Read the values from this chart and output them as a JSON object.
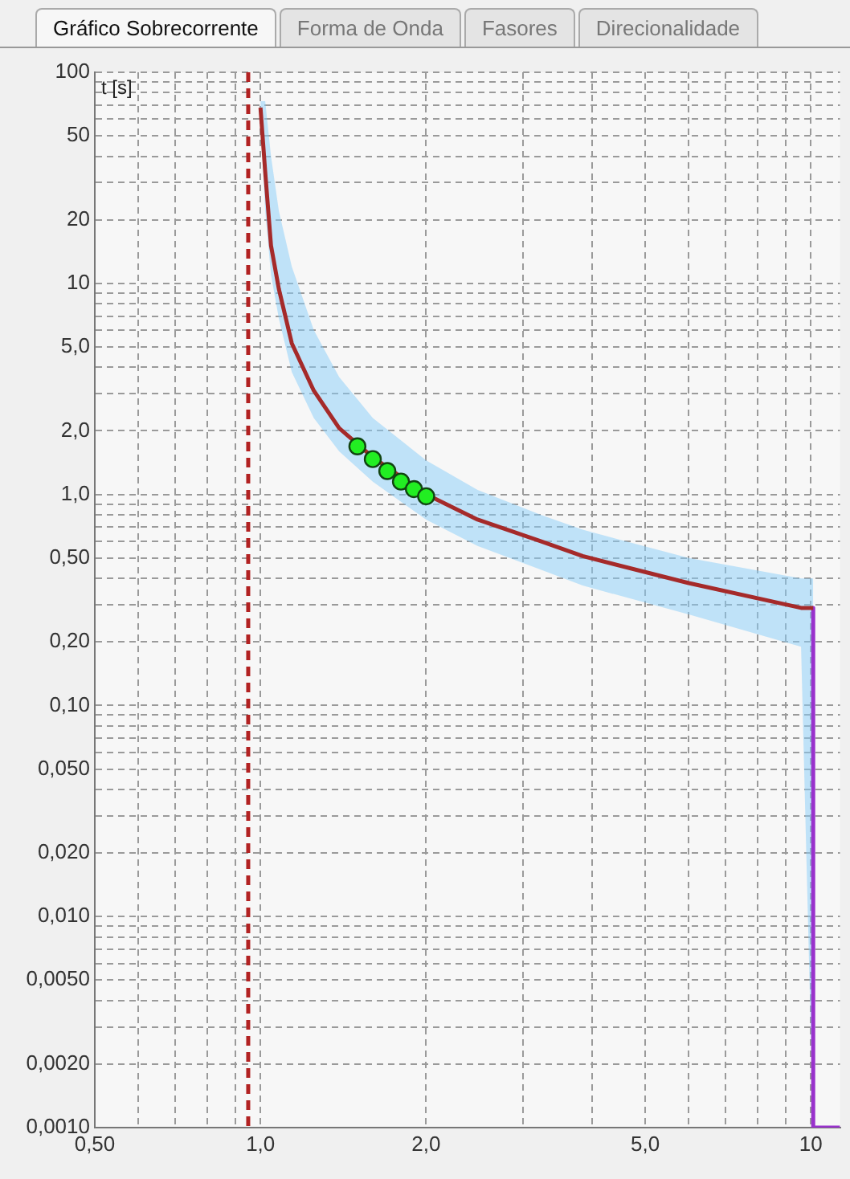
{
  "chart_data": {
    "type": "line",
    "ylabel": "t [s]",
    "annotations": [
      "Gráfico Sobrecorrente",
      "Forma de Onda",
      "Fasores",
      "Direcionalidade"
    ],
    "log": "xy",
    "grid": true,
    "legend": false,
    "xlim": [
      0.5,
      11.3
    ],
    "ylim": [
      0.001,
      100
    ],
    "xticks": [
      {
        "value": 0.5,
        "label": "0,50"
      },
      {
        "value": 0.6,
        "label": null
      },
      {
        "value": 0.7,
        "label": null
      },
      {
        "value": 0.8,
        "label": null
      },
      {
        "value": 0.9,
        "label": null
      },
      {
        "value": 1,
        "label": "1,0"
      },
      {
        "value": 2,
        "label": "2,0"
      },
      {
        "value": 3,
        "label": null
      },
      {
        "value": 4,
        "label": null
      },
      {
        "value": 5,
        "label": "5,0"
      },
      {
        "value": 6,
        "label": null
      },
      {
        "value": 7,
        "label": null
      },
      {
        "value": 8,
        "label": null
      },
      {
        "value": 9,
        "label": null
      },
      {
        "value": 10,
        "label": "10"
      }
    ],
    "yticks": [
      {
        "value": 0.001,
        "label": "0,0010"
      },
      {
        "value": 0.002,
        "label": "0,0020"
      },
      {
        "value": 0.003,
        "label": null
      },
      {
        "value": 0.004,
        "label": null
      },
      {
        "value": 0.005,
        "label": "0,0050"
      },
      {
        "value": 0.006,
        "label": null
      },
      {
        "value": 0.007,
        "label": null
      },
      {
        "value": 0.008,
        "label": null
      },
      {
        "value": 0.009,
        "label": null
      },
      {
        "value": 0.01,
        "label": "0,010"
      },
      {
        "value": 0.02,
        "label": "0,020"
      },
      {
        "value": 0.03,
        "label": null
      },
      {
        "value": 0.04,
        "label": null
      },
      {
        "value": 0.05,
        "label": "0,050"
      },
      {
        "value": 0.06,
        "label": null
      },
      {
        "value": 0.07,
        "label": null
      },
      {
        "value": 0.08,
        "label": null
      },
      {
        "value": 0.09,
        "label": null
      },
      {
        "value": 0.1,
        "label": "0,10"
      },
      {
        "value": 0.2,
        "label": "0,20"
      },
      {
        "value": 0.3,
        "label": null
      },
      {
        "value": 0.4,
        "label": null
      },
      {
        "value": 0.5,
        "label": "0,50"
      },
      {
        "value": 0.6,
        "label": null
      },
      {
        "value": 0.7,
        "label": null
      },
      {
        "value": 0.8,
        "label": null
      },
      {
        "value": 0.9,
        "label": null
      },
      {
        "value": 1,
        "label": "1,0"
      },
      {
        "value": 2,
        "label": "2,0"
      },
      {
        "value": 3,
        "label": null
      },
      {
        "value": 4,
        "label": null
      },
      {
        "value": 5,
        "label": "5,0"
      },
      {
        "value": 6,
        "label": null
      },
      {
        "value": 7,
        "label": null
      },
      {
        "value": 8,
        "label": null
      },
      {
        "value": 9,
        "label": null
      },
      10,
      20,
      {
        "value": 30,
        "label": null
      },
      {
        "value": 40,
        "label": null
      },
      50,
      {
        "value": 60,
        "label": null
      },
      {
        "value": 70,
        "label": null
      },
      {
        "value": 80,
        "label": null
      },
      {
        "value": 90,
        "label": null
      },
      100
    ],
    "ref_lines": [
      {
        "axis": "x",
        "value": 0.95,
        "color": "#b22222",
        "line_style": "dashed"
      }
    ],
    "series": [
      {
        "color": "#a52a2a",
        "marker": "none",
        "x": [
          1.0,
          1.02,
          1.045,
          1.08,
          1.14,
          1.25,
          1.39,
          1.6,
          2.0,
          2.48,
          3.23,
          3.85,
          6.0,
          9.6,
          10.1
        ],
        "values": [
          68,
          33.7,
          15.1,
          9.4,
          5.2,
          3.1,
          2.06,
          1.5,
          1.0,
          0.76,
          0.6,
          0.51,
          0.38,
          0.29,
          0.29
        ],
        "lower": [
          60,
          22,
          11,
          6.8,
          3.8,
          2.3,
          1.6,
          1.15,
          0.76,
          0.57,
          0.44,
          0.37,
          0.27,
          0.19,
          0.001
        ],
        "upper": [
          73,
          73,
          40,
          22,
          12,
          6,
          3.6,
          2.3,
          1.45,
          1.05,
          0.8,
          0.68,
          0.5,
          0.4,
          0.4
        ]
      },
      {
        "color": "#9932cc",
        "marker": "none",
        "x": [
          10.1,
          10.1,
          11.3
        ],
        "values": [
          0.29,
          0.001,
          0.001
        ]
      },
      {
        "type": "scatter",
        "color": "#22ee22",
        "marker": "circle",
        "x": [
          1.5,
          1.6,
          1.7,
          1.8,
          1.9,
          2.0
        ],
        "values": [
          1.69,
          1.47,
          1.29,
          1.15,
          1.06,
          0.98
        ]
      }
    ]
  }
}
